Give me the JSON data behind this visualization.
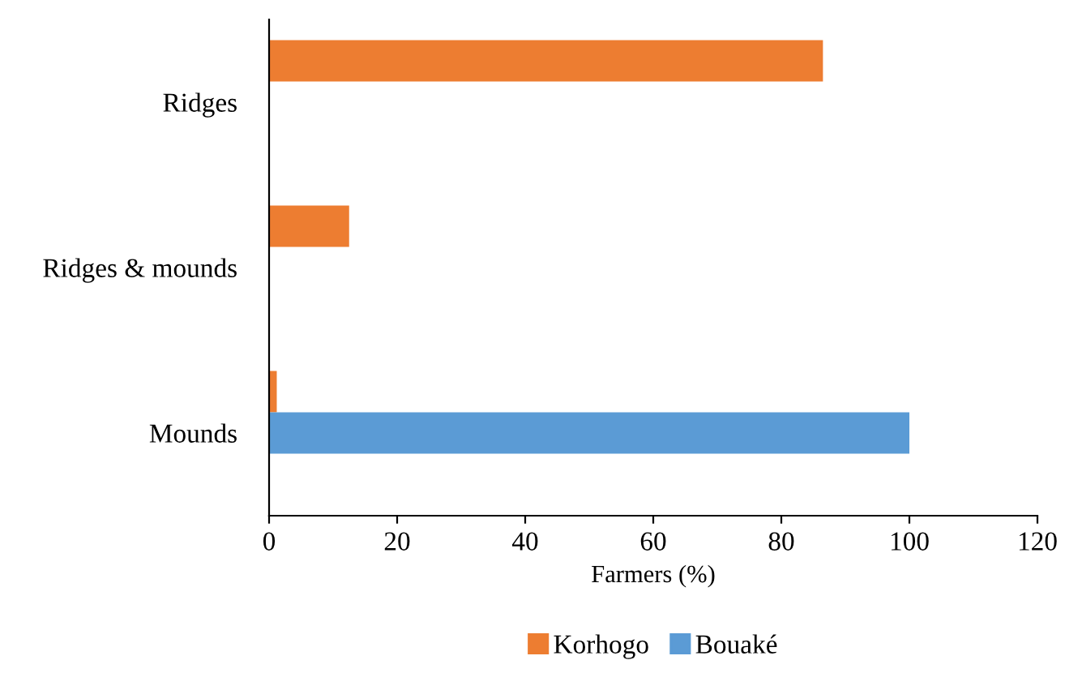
{
  "chart_data": {
    "type": "bar",
    "orientation": "horizontal",
    "xlabel": "Farmers (%)",
    "categories": [
      "Ridges",
      "Ridges & mounds",
      "Mounds"
    ],
    "series": [
      {
        "name": "Korhogo",
        "color": "#ed7d31",
        "values": [
          86.5,
          12.5,
          1.2
        ]
      },
      {
        "name": "Bouaké",
        "color": "#5b9bd5",
        "values": [
          null,
          null,
          100
        ]
      }
    ],
    "xlim": [
      0,
      120
    ],
    "xticks": [
      0,
      20,
      40,
      60,
      80,
      100,
      120
    ],
    "grid": false,
    "legend": "bottom"
  }
}
